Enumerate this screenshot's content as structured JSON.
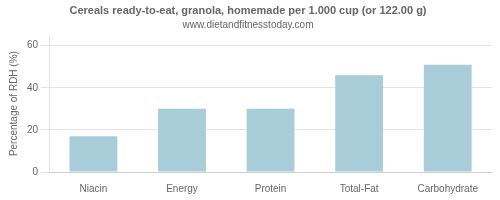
{
  "chart_data": {
    "type": "bar",
    "title": "Cereals ready-to-eat, granola, homemade per 1.000 cup (or 122.00 g)",
    "subtitle": "www.dietandfitnesstoday.com",
    "categories": [
      "Niacin",
      "Energy",
      "Protein",
      "Total-Fat",
      "Carbohydrate"
    ],
    "values": [
      17,
      30,
      30,
      46,
      51
    ],
    "color": "#a8cdd8",
    "ylabel": "Percentage of RDH (%)",
    "ylim": [
      0,
      65
    ],
    "yticks": [
      0,
      20,
      40,
      60
    ],
    "grid": true
  }
}
